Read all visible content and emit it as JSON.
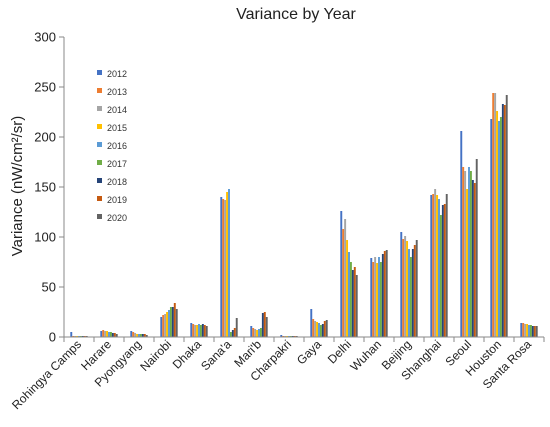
{
  "chart_data": {
    "type": "bar",
    "title": "Variance by Year",
    "ylabel": "Variance (nW/cm²/sr)",
    "xlabel": "",
    "ylim": [
      0,
      300
    ],
    "yticks": [
      0,
      50,
      100,
      150,
      200,
      250,
      300
    ],
    "grid": false,
    "legend": "upper-left-inside",
    "categories": [
      "Rohingya Camps",
      "Harare",
      "Pyongyang",
      "Nairobi",
      "Dhaka",
      "Sana'a",
      "Mari'b",
      "Charpakri",
      "Gaya",
      "Delhi",
      "Wuhan",
      "Beijing",
      "Shanghai",
      "Seoul",
      "Houston",
      "Santa Rosa"
    ],
    "series": [
      {
        "name": "2012",
        "color": "#4472c4",
        "values": [
          5,
          6,
          6,
          20,
          14,
          140,
          11,
          2,
          28,
          126,
          79,
          105,
          142,
          206,
          218,
          14
        ]
      },
      {
        "name": "2013",
        "color": "#ed7d31",
        "values": [
          1,
          7,
          5,
          22,
          13,
          138,
          9,
          1,
          18,
          108,
          75,
          98,
          143,
          170,
          244,
          14
        ]
      },
      {
        "name": "2014",
        "color": "#a5a5a5",
        "values": [
          1,
          6,
          4,
          23,
          12,
          137,
          8,
          1,
          16,
          118,
          80,
          101,
          148,
          166,
          244,
          13
        ]
      },
      {
        "name": "2015",
        "color": "#ffc000",
        "values": [
          1,
          6,
          3,
          25,
          12,
          145,
          7,
          1,
          15,
          97,
          74,
          96,
          142,
          148,
          226,
          13
        ]
      },
      {
        "name": "2016",
        "color": "#5b9bd5",
        "values": [
          1,
          5,
          3,
          27,
          13,
          148,
          8,
          1,
          14,
          85,
          80,
          88,
          138,
          170,
          216,
          12
        ]
      },
      {
        "name": "2017",
        "color": "#70ad47",
        "values": [
          1,
          5,
          3,
          30,
          12,
          5,
          9,
          1,
          12,
          75,
          75,
          80,
          122,
          166,
          220,
          12
        ]
      },
      {
        "name": "2018",
        "color": "#264478",
        "values": [
          1,
          4,
          3,
          30,
          13,
          7,
          24,
          1,
          13,
          67,
          83,
          88,
          132,
          157,
          233,
          11
        ]
      },
      {
        "name": "2019",
        "color": "#c55a11",
        "values": [
          1,
          4,
          3,
          34,
          12,
          9,
          25,
          1,
          16,
          70,
          86,
          92,
          133,
          154,
          232,
          11
        ]
      },
      {
        "name": "2020",
        "color": "#636363",
        "values": [
          1,
          3,
          2,
          28,
          11,
          19,
          20,
          1,
          17,
          62,
          87,
          97,
          143,
          178,
          242,
          11
        ]
      }
    ]
  }
}
